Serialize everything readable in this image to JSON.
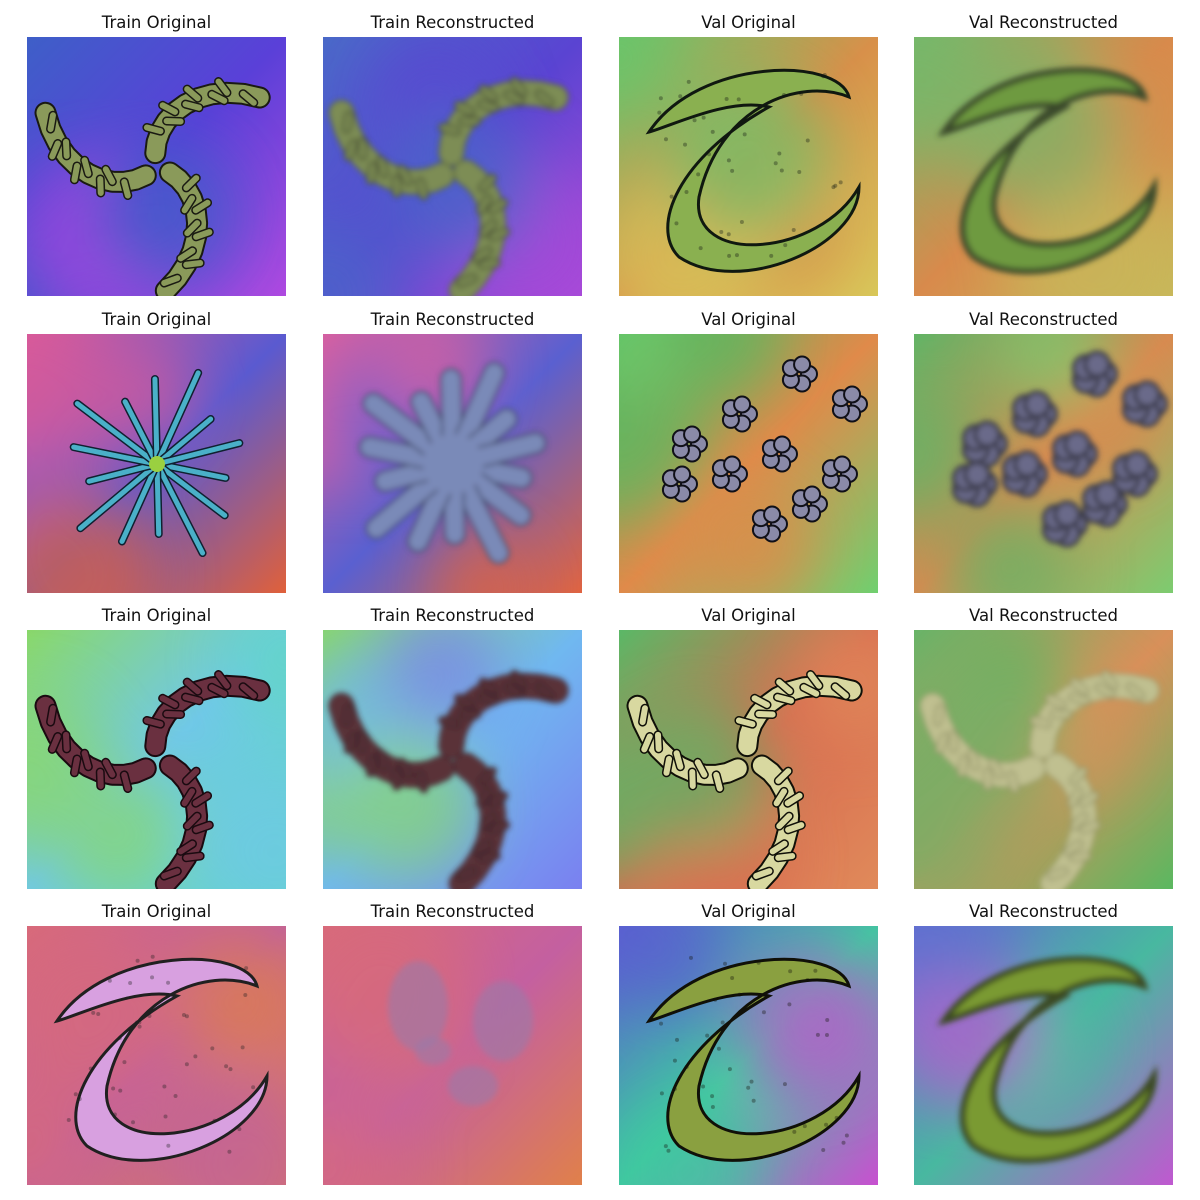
{
  "grid": {
    "rows": [
      {
        "panels": [
          {
            "title": "Train Original",
            "motif": "spiral-branches",
            "sharp": true,
            "bg": [
              "#3e5fc8",
              "#5a40d8",
              "#b04ae0"
            ],
            "fill": "#8a9a5a",
            "edge": "#1a1a12"
          },
          {
            "title": "Train Reconstructed",
            "motif": "spiral-branches",
            "sharp": false,
            "bg": [
              "#4a6ac8",
              "#5a44d2",
              "#a84ad8"
            ],
            "fill": "#7d8d55",
            "edge": "#2a2a22"
          },
          {
            "title": "Val Original",
            "motif": "s-curve",
            "sharp": true,
            "bg": [
              "#6cc46a",
              "#d8904a",
              "#d8c85a"
            ],
            "fill": "#8ab050",
            "edge": "#101810"
          },
          {
            "title": "Val Reconstructed",
            "motif": "s-curve",
            "sharp": false,
            "bg": [
              "#76b86a",
              "#d88a4c",
              "#c8b85a"
            ],
            "fill": "#6e9a40",
            "edge": "#3a4a2a"
          }
        ]
      },
      {
        "panels": [
          {
            "title": "Train Original",
            "motif": "starburst",
            "sharp": true,
            "bg": [
              "#d85a9a",
              "#5a5ad0",
              "#e0603a"
            ],
            "fill": "#4ab0c8",
            "edge": "#102030"
          },
          {
            "title": "Train Reconstructed",
            "motif": "starburst",
            "sharp": false,
            "bg": [
              "#d860a0",
              "#5a60d0",
              "#e06440"
            ],
            "fill": "#7a8ab8",
            "edge": "#3a4060"
          },
          {
            "title": "Val Original",
            "motif": "clusters",
            "sharp": true,
            "bg": [
              "#5ab860",
              "#e08a4a",
              "#70d070"
            ],
            "fill": "#8a8aa8",
            "edge": "#101018"
          },
          {
            "title": "Val Reconstructed",
            "motif": "clusters",
            "sharp": false,
            "bg": [
              "#62b466",
              "#d88a50",
              "#7ccc70"
            ],
            "fill": "#6a6a8a",
            "edge": "#3a3a4a"
          }
        ]
      },
      {
        "panels": [
          {
            "title": "Train Original",
            "motif": "spiral-branches",
            "sharp": true,
            "bg": [
              "#8ad86a",
              "#70c8e8",
              "#60d8c0"
            ],
            "fill": "#6a3040",
            "edge": "#1a0a10"
          },
          {
            "title": "Train Reconstructed",
            "motif": "spiral-branches",
            "sharp": false,
            "bg": [
              "#8ad66a",
              "#70b8f0",
              "#7a80f0"
            ],
            "fill": "#5a3038",
            "edge": "#2a1a20"
          },
          {
            "title": "Val Original",
            "motif": "spiral-branches",
            "sharp": true,
            "bg": [
              "#5ab866",
              "#d86a50",
              "#e08a5a"
            ],
            "fill": "#d8d8a0",
            "edge": "#101008"
          },
          {
            "title": "Val Reconstructed",
            "motif": "spiral-branches",
            "sharp": false,
            "bg": [
              "#68b468",
              "#d8905a",
              "#5ab860"
            ],
            "fill": "#c0c090",
            "edge": "#8a8a60"
          }
        ]
      },
      {
        "panels": [
          {
            "title": "Train Original",
            "motif": "s-curve",
            "sharp": true,
            "bg": [
              "#d86a7a",
              "#c060a0",
              "#e0804a"
            ],
            "fill": "#d8a0e0",
            "edge": "#202020"
          },
          {
            "title": "Train Reconstructed",
            "motif": "fragments",
            "sharp": false,
            "bg": [
              "#d86a7a",
              "#c460a0",
              "#e0804a"
            ],
            "fill": "#9a7aa8",
            "edge": "#7a5a88"
          },
          {
            "title": "Val Original",
            "motif": "s-curve",
            "sharp": true,
            "bg": [
              "#5a60d0",
              "#40c8a0",
              "#c850d0"
            ],
            "fill": "#8aa040",
            "edge": "#101008"
          },
          {
            "title": "Val Reconstructed",
            "motif": "s-curve",
            "sharp": false,
            "bg": [
              "#6070d0",
              "#48b8a0",
              "#c058d0"
            ],
            "fill": "#7a9a30",
            "edge": "#3a4a20"
          }
        ]
      }
    ]
  }
}
